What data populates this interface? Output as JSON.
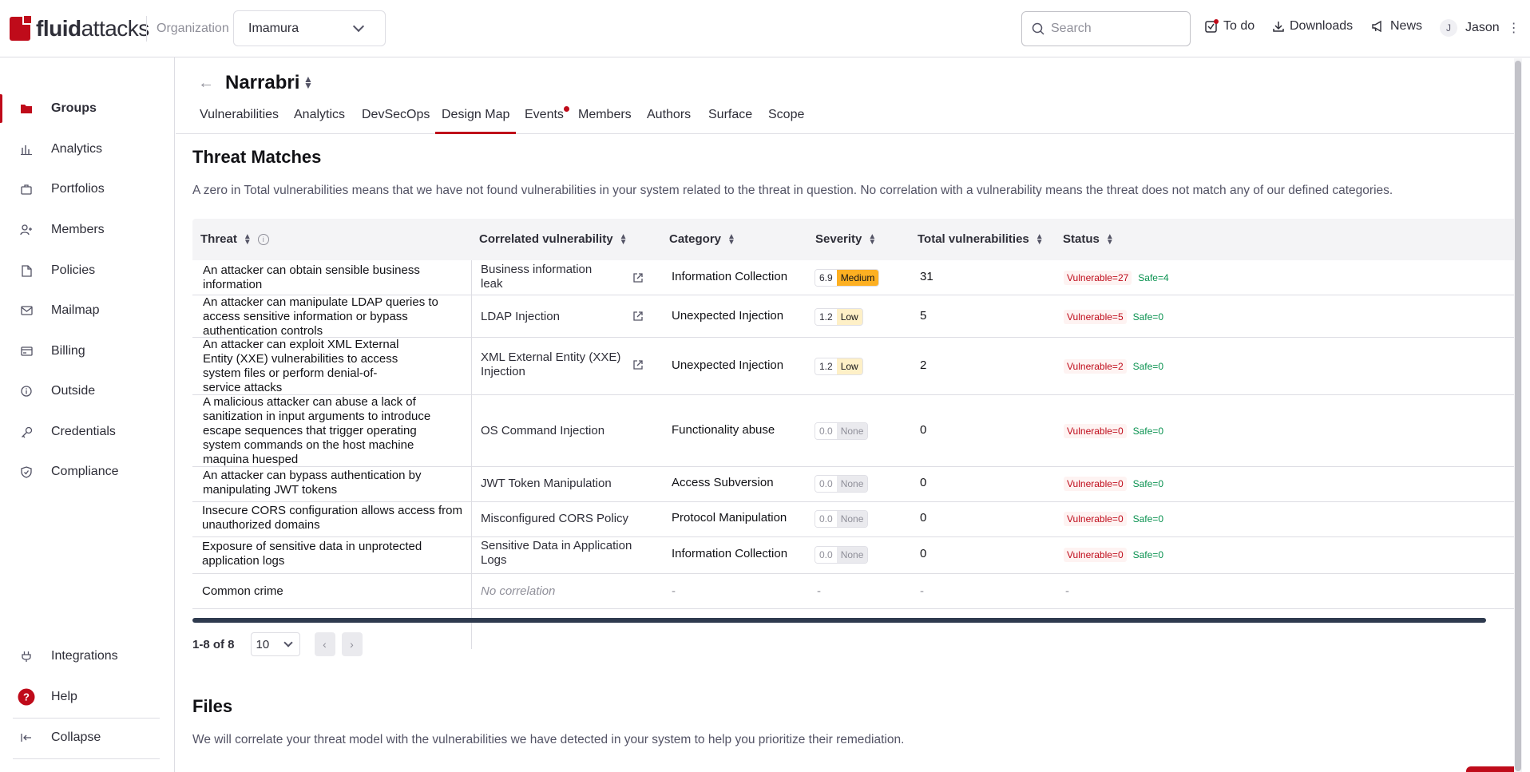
{
  "brand": {
    "logo_text_bold": "fluid",
    "logo_text_rest": "attacks",
    "accent": "#bf0b1a"
  },
  "header": {
    "org_label": "Organization",
    "org_value": "Imamura",
    "search_placeholder": "Search",
    "todo_label": "To do",
    "downloads_label": "Downloads",
    "news_label": "News",
    "user_initial": "J",
    "user_name": "Jason"
  },
  "sidebar": {
    "items": [
      {
        "label": "Groups",
        "icon": "folder-icon"
      },
      {
        "label": "Analytics",
        "icon": "bar-chart-icon"
      },
      {
        "label": "Portfolios",
        "icon": "briefcase-icon"
      },
      {
        "label": "Members",
        "icon": "user-plus-icon"
      },
      {
        "label": "Policies",
        "icon": "document-icon"
      },
      {
        "label": "Mailmap",
        "icon": "mail-icon"
      },
      {
        "label": "Billing",
        "icon": "card-icon"
      },
      {
        "label": "Outside",
        "icon": "info-circle-icon"
      },
      {
        "label": "Credentials",
        "icon": "key-icon"
      },
      {
        "label": "Compliance",
        "icon": "shield-check-icon"
      }
    ],
    "bottom": [
      {
        "label": "Integrations",
        "icon": "plug-icon"
      },
      {
        "label": "Help",
        "icon": "help-icon"
      },
      {
        "label": "Collapse",
        "icon": "collapse-icon"
      }
    ]
  },
  "group": {
    "name": "Narrabri"
  },
  "tabs": [
    "Vulnerabilities",
    "Analytics",
    "DevSecOps",
    "Design Map",
    "Events",
    "Members",
    "Authors",
    "Surface",
    "Scope"
  ],
  "threat_matches": {
    "title": "Threat Matches",
    "description": "A zero in Total vulnerabilities means that we have not found vulnerabilities in your system related to the threat in question. No correlation with a vulnerability means the threat does not match any of our defined categories.",
    "columns": [
      "Threat",
      "Correlated vulnerability",
      "Category",
      "Severity",
      "Total vulnerabilities",
      "Status"
    ],
    "rows": [
      {
        "threat": "An attacker can obtain sensible business information",
        "vulnerability": "Business information leak",
        "category": "Information Collection",
        "score": "6.9",
        "level": "Medium",
        "total": "31",
        "vulnerable": "Vulnerable=27",
        "safe": "Safe=4"
      },
      {
        "threat": "An attacker can manipulate LDAP queries to access sensitive information or bypass authentication controls",
        "vulnerability": "LDAP Injection",
        "category": "Unexpected Injection",
        "score": "1.2",
        "level": "Low",
        "total": "5",
        "vulnerable": "Vulnerable=5",
        "safe": "Safe=0"
      },
      {
        "threat": "An attacker can exploit XML External Entity (XXE) vulnerabilities to access system files or perform denial-of-service attacks",
        "vulnerability": "XML External Entity (XXE) Injection",
        "category": "Unexpected Injection",
        "score": "1.2",
        "level": "Low",
        "total": "2",
        "vulnerable": "Vulnerable=2",
        "safe": "Safe=0"
      },
      {
        "threat": "A malicious attacker can abuse a lack of sanitization in input arguments to introduce escape sequences that trigger operating system commands on the host machine maquina huesped",
        "vulnerability": "OS Command Injection",
        "category": "Functionality abuse",
        "score": "0.0",
        "level": "None",
        "total": "0",
        "vulnerable": "Vulnerable=0",
        "safe": "Safe=0"
      },
      {
        "threat": "An attacker can bypass authentication by manipulating JWT tokens",
        "vulnerability": "JWT Token Manipulation",
        "category": "Access Subversion",
        "score": "0.0",
        "level": "None",
        "total": "0",
        "vulnerable": "Vulnerable=0",
        "safe": "Safe=0"
      },
      {
        "threat": "Insecure CORS configuration allows access from unauthorized domains",
        "vulnerability": "Misconfigured CORS Policy",
        "category": "Protocol Manipulation",
        "score": "0.0",
        "level": "None",
        "total": "0",
        "vulnerable": "Vulnerable=0",
        "safe": "Safe=0"
      },
      {
        "threat": "Exposure of sensitive data in unprotected application logs",
        "vulnerability": "Sensitive Data in Application Logs",
        "category": "Information Collection",
        "score": "0.0",
        "level": "None",
        "total": "0",
        "vulnerable": "Vulnerable=0",
        "safe": "Safe=0"
      },
      {
        "threat": "Common crime",
        "vulnerability": "No correlation",
        "category": "-",
        "score": "-",
        "level": "",
        "total": "-",
        "vulnerable": "-",
        "safe": ""
      }
    ],
    "pagination": {
      "range": "1-8 of 8",
      "page_size": "10"
    }
  },
  "files": {
    "title": "Files",
    "description": "We will correlate your threat model with the vulnerabilities we have detected in your system to help you prioritize their remediation."
  }
}
